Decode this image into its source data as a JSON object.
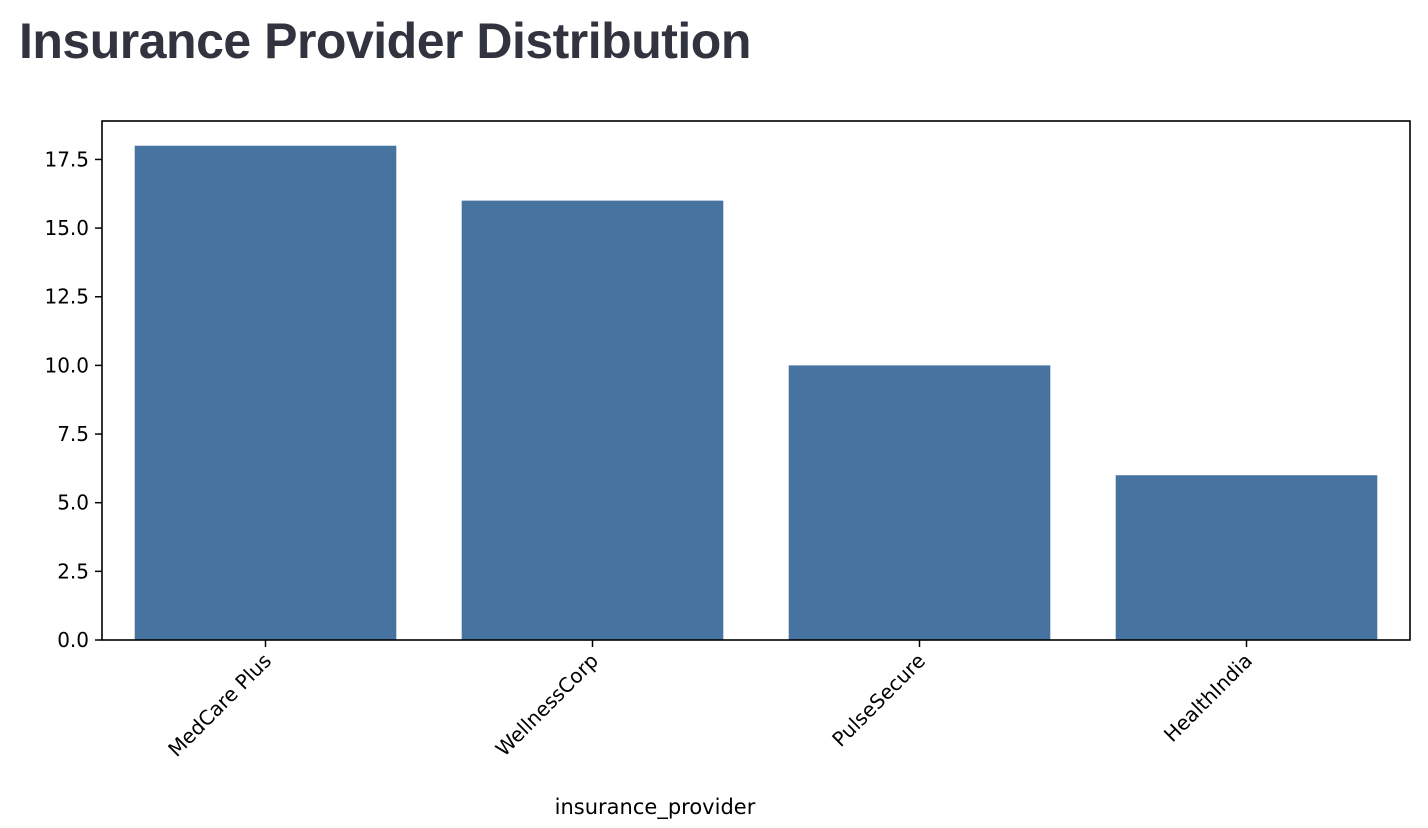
{
  "page": {
    "title": "Insurance Provider Distribution"
  },
  "chart_data": {
    "type": "bar",
    "title": "",
    "xlabel": "insurance_provider",
    "ylabel": "",
    "categories": [
      "MedCare Plus",
      "WellnessCorp",
      "PulseSecure",
      "HealthIndia"
    ],
    "values": [
      18,
      16,
      10,
      6
    ],
    "ylim": [
      0,
      18.9
    ],
    "yticks": [
      0.0,
      2.5,
      5.0,
      7.5,
      10.0,
      12.5,
      15.0,
      17.5
    ],
    "ytick_labels": [
      "0.0",
      "2.5",
      "5.0",
      "7.5",
      "10.0",
      "12.5",
      "15.0",
      "17.5"
    ],
    "bar_color": "#4673a0",
    "grid": false,
    "xtick_rotation": 45
  }
}
